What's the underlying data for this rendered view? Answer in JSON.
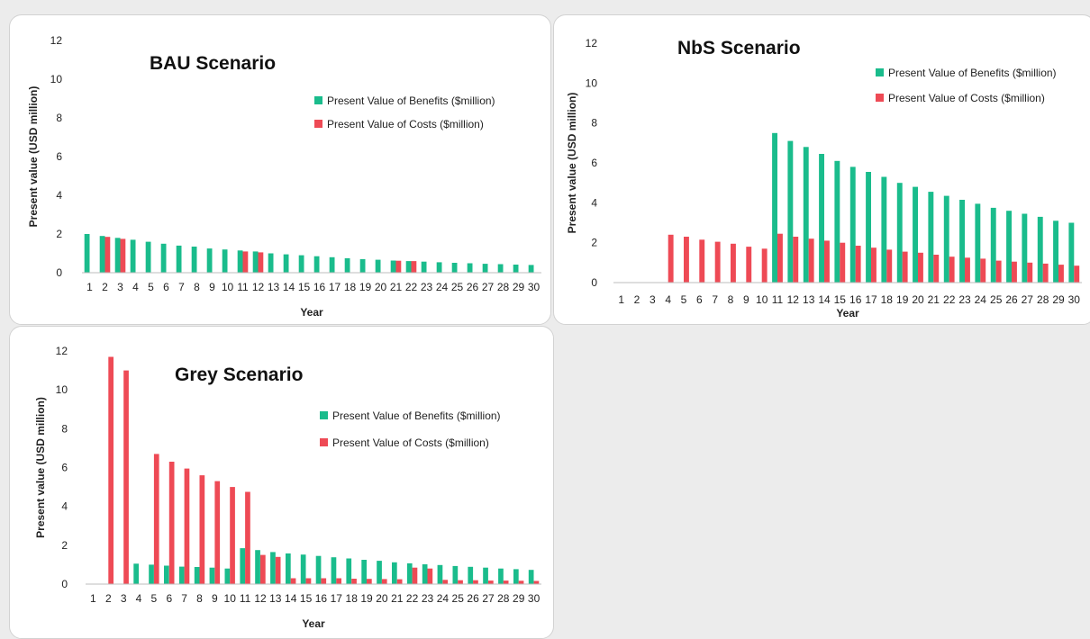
{
  "colors": {
    "benefits": "#1abc8c",
    "costs": "#ee4a55",
    "axis": "#bdbdbd"
  },
  "chart_data": [
    {
      "id": "bau",
      "type": "bar",
      "title": "BAU Scenario",
      "xlabel": "Year",
      "ylabel": "Present value (USD million)",
      "ylim": [
        0,
        12
      ],
      "yticks": [
        0,
        2,
        4,
        6,
        8,
        10,
        12
      ],
      "categories": [
        "1",
        "2",
        "3",
        "4",
        "5",
        "6",
        "7",
        "8",
        "9",
        "10",
        "11",
        "12",
        "13",
        "14",
        "15",
        "16",
        "17",
        "18",
        "19",
        "20",
        "21",
        "22",
        "23",
        "24",
        "25",
        "26",
        "27",
        "28",
        "29",
        "30"
      ],
      "legend_position": "top-right",
      "series": [
        {
          "name": "Present Value of Benefits ($million)",
          "color_key": "benefits",
          "values": [
            2.0,
            1.9,
            1.8,
            1.7,
            1.6,
            1.5,
            1.4,
            1.35,
            1.25,
            1.2,
            1.15,
            1.1,
            1.0,
            0.95,
            0.9,
            0.85,
            0.8,
            0.75,
            0.7,
            0.67,
            0.63,
            0.6,
            0.57,
            0.54,
            0.51,
            0.49,
            0.46,
            0.44,
            0.42,
            0.4
          ]
        },
        {
          "name": "Present Value of Costs ($million)",
          "color_key": "costs",
          "values": [
            0,
            1.85,
            1.75,
            0,
            0,
            0,
            0,
            0,
            0,
            0,
            1.1,
            1.05,
            0,
            0,
            0,
            0,
            0,
            0,
            0,
            0,
            0.62,
            0.6,
            0,
            0,
            0,
            0,
            0,
            0,
            0,
            0
          ]
        }
      ]
    },
    {
      "id": "nbs",
      "type": "bar",
      "title": "NbS Scenario",
      "xlabel": "Year",
      "ylabel": "Present value (USD million)",
      "ylim": [
        0,
        12
      ],
      "yticks": [
        0,
        2,
        4,
        6,
        8,
        10,
        12
      ],
      "categories": [
        "1",
        "2",
        "3",
        "4",
        "5",
        "6",
        "7",
        "8",
        "9",
        "10",
        "11",
        "12",
        "13",
        "14",
        "15",
        "16",
        "17",
        "18",
        "19",
        "20",
        "21",
        "22",
        "23",
        "24",
        "25",
        "26",
        "27",
        "28",
        "29",
        "30"
      ],
      "legend_position": "top-right",
      "series": [
        {
          "name": "Present Value of Benefits ($million)",
          "color_key": "benefits",
          "values": [
            0,
            0,
            0,
            0,
            0,
            0,
            0,
            0,
            0,
            0,
            7.5,
            7.1,
            6.8,
            6.45,
            6.1,
            5.8,
            5.55,
            5.3,
            5.0,
            4.8,
            4.55,
            4.35,
            4.15,
            3.95,
            3.75,
            3.6,
            3.45,
            3.3,
            3.1,
            3.0
          ]
        },
        {
          "name": "Present Value of Costs ($million)",
          "color_key": "costs",
          "values": [
            0,
            0,
            0,
            2.4,
            2.3,
            2.15,
            2.05,
            1.95,
            1.8,
            1.7,
            2.45,
            2.3,
            2.2,
            2.1,
            2.0,
            1.85,
            1.75,
            1.65,
            1.55,
            1.5,
            1.4,
            1.3,
            1.25,
            1.2,
            1.1,
            1.05,
            1.0,
            0.95,
            0.9,
            0.85
          ]
        }
      ]
    },
    {
      "id": "grey",
      "type": "bar",
      "title": "Grey Scenario",
      "xlabel": "Year",
      "ylabel": "Present value (USD million)",
      "ylim": [
        0,
        12
      ],
      "yticks": [
        0,
        2,
        4,
        6,
        8,
        10,
        12
      ],
      "categories": [
        "1",
        "2",
        "3",
        "4",
        "5",
        "6",
        "7",
        "8",
        "9",
        "10",
        "11",
        "12",
        "13",
        "14",
        "15",
        "16",
        "17",
        "18",
        "19",
        "20",
        "21",
        "22",
        "23",
        "24",
        "25",
        "26",
        "27",
        "28",
        "29",
        "30"
      ],
      "legend_position": "top-right",
      "series": [
        {
          "name": "Present Value of Benefits ($million)",
          "color_key": "benefits",
          "values": [
            0,
            0,
            0,
            1.05,
            1.0,
            0.95,
            0.9,
            0.88,
            0.85,
            0.8,
            1.85,
            1.75,
            1.65,
            1.58,
            1.52,
            1.45,
            1.38,
            1.32,
            1.25,
            1.2,
            1.12,
            1.07,
            1.02,
            0.98,
            0.93,
            0.89,
            0.85,
            0.8,
            0.77,
            0.73
          ]
        },
        {
          "name": "Present Value of Costs ($million)",
          "color_key": "costs",
          "values": [
            0,
            11.7,
            11.0,
            0,
            6.7,
            6.3,
            5.95,
            5.6,
            5.3,
            5.0,
            4.75,
            1.5,
            1.4,
            0.3,
            0.3,
            0.3,
            0.3,
            0.28,
            0.27,
            0.26,
            0.25,
            0.85,
            0.8,
            0.22,
            0.2,
            0.2,
            0.18,
            0.18,
            0.17,
            0.16
          ]
        }
      ]
    }
  ]
}
